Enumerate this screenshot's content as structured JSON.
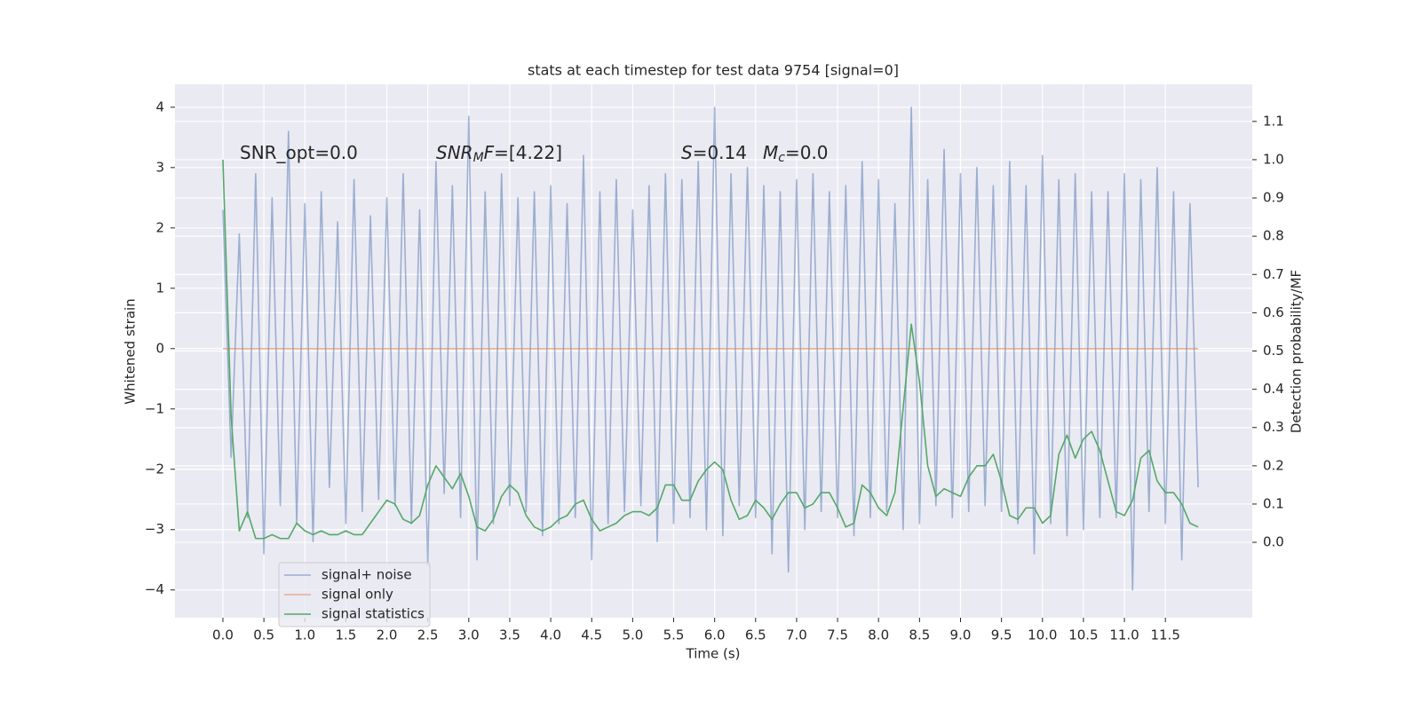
{
  "chart_data": {
    "type": "line",
    "title": "stats at each timestep for test data 9754 [signal=0]",
    "xlabel": "Time (s)",
    "ylabel": "Whitened strain",
    "y2label": "Detection probability/MF",
    "grid": true,
    "legend": "lower left",
    "xlim": [
      -0.585,
      12.56
    ],
    "ylim": [
      -4.46,
      4.38
    ],
    "y2lim": [
      -0.197,
      1.197
    ],
    "xticks": [
      {
        "value": 0,
        "label": "0.0"
      },
      0.5,
      {
        "value": 1,
        "label": "1.0"
      },
      1.5,
      {
        "value": 2,
        "label": "2.0"
      },
      2.5,
      {
        "value": 3,
        "label": "3.0"
      },
      3.5,
      {
        "value": 4,
        "label": "4.0"
      },
      4.5,
      {
        "value": 5,
        "label": "5.0"
      },
      5.5,
      {
        "value": 6,
        "label": "6.0"
      },
      6.5,
      {
        "value": 7,
        "label": "7.0"
      },
      7.5,
      {
        "value": 8,
        "label": "8.0"
      },
      8.5,
      {
        "value": 9,
        "label": "9.0"
      },
      9.5,
      {
        "value": 10,
        "label": "10.0"
      },
      10.5,
      {
        "value": 11,
        "label": "11.0"
      },
      11.5
    ],
    "yticks": [
      {
        "value": -4,
        "label": "−4"
      },
      {
        "value": -3,
        "label": "−3"
      },
      {
        "value": -2,
        "label": "−2"
      },
      {
        "value": -1,
        "label": "−1"
      },
      0,
      1,
      2,
      3,
      4
    ],
    "y2ticks": [
      {
        "value": 0,
        "label": "0.0"
      },
      0.1,
      0.2,
      0.3,
      0.4,
      0.5,
      0.6,
      0.7,
      0.8,
      0.9,
      {
        "value": 1,
        "label": "1.0"
      },
      1.1
    ],
    "annotations": [
      [
        {
          "text": "SNR_opt=0.0"
        }
      ],
      [
        {
          "text": "SNR",
          "italic": true
        },
        {
          "text": "M",
          "italic": true,
          "sub": true
        },
        {
          "text": "F",
          "italic": true
        },
        {
          "text": "=[4.22]"
        }
      ],
      [
        {
          "text": "S",
          "italic": true
        },
        {
          "text": "=0.14"
        }
      ],
      [
        {
          "text": "M",
          "italic": true
        },
        {
          "text": "c",
          "italic": true,
          "sub": true
        },
        {
          "text": "=0.0"
        }
      ]
    ],
    "x": [
      0,
      0.1,
      0.2,
      0.3,
      0.4,
      0.5,
      0.6,
      0.7,
      0.8,
      0.9,
      1,
      1.1,
      1.2,
      1.3,
      1.4,
      1.5,
      1.6,
      1.7,
      1.8,
      1.9,
      2,
      2.1,
      2.2,
      2.3,
      2.4,
      2.5,
      2.6,
      2.7,
      2.8,
      2.9,
      3,
      3.1,
      3.2,
      3.3,
      3.4,
      3.5,
      3.6,
      3.7,
      3.8,
      3.9,
      4,
      4.1,
      4.2,
      4.3,
      4.4,
      4.5,
      4.6,
      4.7,
      4.8,
      4.9,
      5,
      5.1,
      5.2,
      5.3,
      5.4,
      5.5,
      5.6,
      5.7,
      5.8,
      5.9,
      6,
      6.1,
      6.2,
      6.3,
      6.4,
      6.5,
      6.6,
      6.7,
      6.8,
      6.9,
      7,
      7.1,
      7.2,
      7.3,
      7.4,
      7.5,
      7.6,
      7.7,
      7.8,
      7.9,
      8,
      8.1,
      8.2,
      8.3,
      8.4,
      8.5,
      8.6,
      8.7,
      8.8,
      8.9,
      9,
      9.1,
      9.2,
      9.3,
      9.4,
      9.5,
      9.6,
      9.7,
      9.8,
      9.9,
      10,
      10.1,
      10.2,
      10.3,
      10.4,
      10.5,
      10.6,
      10.7,
      10.8,
      10.9,
      11,
      11.1,
      11.2,
      11.3,
      11.4,
      11.5,
      11.6,
      11.7,
      11.8,
      11.9
    ],
    "series": [
      {
        "name": "signal+ noise",
        "color": "#4c72b0",
        "opacity": 0.5,
        "values": [
          2.3,
          -1.8,
          1.9,
          -2.8,
          2.9,
          -3.4,
          2.5,
          -2.6,
          3.6,
          -2.9,
          2.4,
          -3.2,
          2.6,
          -2.3,
          2.1,
          -2.9,
          2.8,
          -2.7,
          2.2,
          -2.5,
          2.5,
          -2.6,
          2.9,
          -2.9,
          2.3,
          -3.6,
          3.1,
          -2.4,
          2.7,
          -2.8,
          3.85,
          -3.5,
          2.6,
          -2.9,
          2.9,
          -2.6,
          2.5,
          -2.7,
          2.6,
          -3.1,
          2.7,
          -2.9,
          2.4,
          -2.8,
          3.2,
          -3.5,
          2.6,
          -2.9,
          2.8,
          -2.7,
          2.3,
          -2.6,
          2.7,
          -3.2,
          2.9,
          -2.9,
          2.8,
          -2.8,
          3.1,
          -3.0,
          4.0,
          -3.1,
          2.9,
          -2.6,
          3.0,
          -2.8,
          2.7,
          -3.4,
          2.6,
          -3.7,
          2.8,
          -3.0,
          2.9,
          -2.7,
          2.6,
          -2.8,
          2.7,
          -3.1,
          3.1,
          -2.8,
          2.8,
          -2.7,
          2.4,
          -3.0,
          4.0,
          -2.9,
          2.8,
          -2.6,
          3.3,
          -2.8,
          2.9,
          -2.7,
          3.0,
          -2.6,
          2.7,
          -2.7,
          3.1,
          -2.9,
          2.7,
          -3.4,
          3.2,
          -2.9,
          2.8,
          -3.1,
          2.9,
          -3.0,
          2.6,
          -2.8,
          2.6,
          -2.8,
          2.9,
          -4.0,
          2.8,
          -2.7,
          3.0,
          -2.9,
          2.6,
          -3.5,
          2.4,
          -2.3
        ]
      },
      {
        "name": "signal only",
        "color": "#dd8452",
        "opacity": 0.6,
        "values": [
          0,
          0,
          0,
          0,
          0,
          0,
          0,
          0,
          0,
          0,
          0,
          0,
          0,
          0,
          0,
          0,
          0,
          0,
          0,
          0,
          0,
          0,
          0,
          0,
          0,
          0,
          0,
          0,
          0,
          0,
          0,
          0,
          0,
          0,
          0,
          0,
          0,
          0,
          0,
          0,
          0,
          0,
          0,
          0,
          0,
          0,
          0,
          0,
          0,
          0,
          0,
          0,
          0,
          0,
          0,
          0,
          0,
          0,
          0,
          0,
          0,
          0,
          0,
          0,
          0,
          0,
          0,
          0,
          0,
          0,
          0,
          0,
          0,
          0,
          0,
          0,
          0,
          0,
          0,
          0,
          0,
          0,
          0,
          0,
          0,
          0,
          0,
          0,
          0,
          0,
          0,
          0,
          0,
          0,
          0,
          0,
          0,
          0,
          0,
          0,
          0,
          0,
          0,
          0,
          0,
          0,
          0,
          0,
          0,
          0,
          0,
          0,
          0,
          0,
          0,
          0,
          0,
          0,
          0,
          0
        ]
      },
      {
        "name": "signal statistics",
        "color": "#55a868",
        "opacity": 1,
        "axis": "y2",
        "values": [
          1.0,
          0.33,
          0.03,
          0.08,
          0.01,
          0.01,
          0.02,
          0.01,
          0.01,
          0.05,
          0.03,
          0.02,
          0.03,
          0.02,
          0.02,
          0.03,
          0.02,
          0.02,
          0.05,
          0.08,
          0.11,
          0.1,
          0.06,
          0.05,
          0.07,
          0.15,
          0.2,
          0.17,
          0.14,
          0.18,
          0.12,
          0.04,
          0.03,
          0.06,
          0.12,
          0.15,
          0.13,
          0.07,
          0.04,
          0.03,
          0.04,
          0.06,
          0.07,
          0.1,
          0.11,
          0.06,
          0.03,
          0.04,
          0.05,
          0.07,
          0.08,
          0.08,
          0.07,
          0.09,
          0.15,
          0.15,
          0.11,
          0.11,
          0.16,
          0.19,
          0.21,
          0.19,
          0.11,
          0.06,
          0.07,
          0.11,
          0.09,
          0.06,
          0.1,
          0.13,
          0.13,
          0.09,
          0.1,
          0.13,
          0.13,
          0.09,
          0.04,
          0.05,
          0.15,
          0.13,
          0.09,
          0.07,
          0.13,
          0.35,
          0.57,
          0.42,
          0.2,
          0.12,
          0.14,
          0.13,
          0.12,
          0.17,
          0.2,
          0.2,
          0.23,
          0.16,
          0.07,
          0.06,
          0.09,
          0.09,
          0.05,
          0.07,
          0.23,
          0.28,
          0.22,
          0.27,
          0.29,
          0.24,
          0.16,
          0.08,
          0.07,
          0.11,
          0.22,
          0.24,
          0.16,
          0.13,
          0.13,
          0.1,
          0.05,
          0.04
        ]
      }
    ]
  }
}
